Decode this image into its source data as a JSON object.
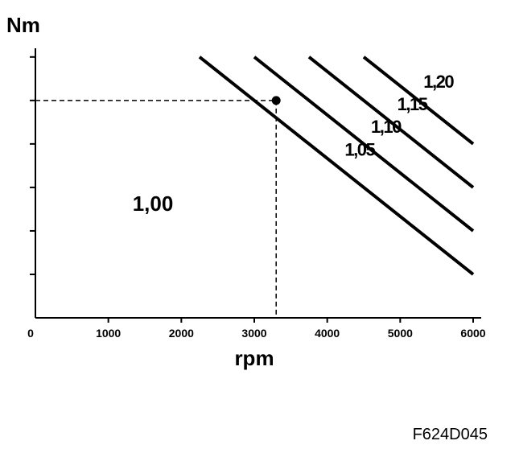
{
  "chart_data": {
    "type": "line",
    "y_label": "Nm",
    "x_label": "rpm",
    "region_label": "1,00",
    "figure_id": "F624D045",
    "xlim": [
      0,
      6000
    ],
    "xticks": [
      0,
      1000,
      2000,
      3000,
      4000,
      5000,
      6000
    ],
    "ylim": [
      0,
      6.2
    ],
    "yticks": [
      1,
      2,
      3,
      4,
      5,
      6
    ],
    "series": [
      {
        "name": "1,05",
        "color": "#000000",
        "x": [
          2250,
          6000
        ],
        "values": [
          6,
          1
        ]
      },
      {
        "name": "1,10",
        "color": "#000000",
        "x": [
          3000,
          6000
        ],
        "values": [
          6,
          2
        ]
      },
      {
        "name": "1,15",
        "color": "#000000",
        "x": [
          3750,
          6000
        ],
        "values": [
          6,
          3
        ]
      },
      {
        "name": "1,20",
        "color": "#000000",
        "x": [
          4500,
          6000
        ],
        "values": [
          6,
          4
        ]
      }
    ],
    "marker": {
      "x": 3300,
      "y": 5
    }
  }
}
